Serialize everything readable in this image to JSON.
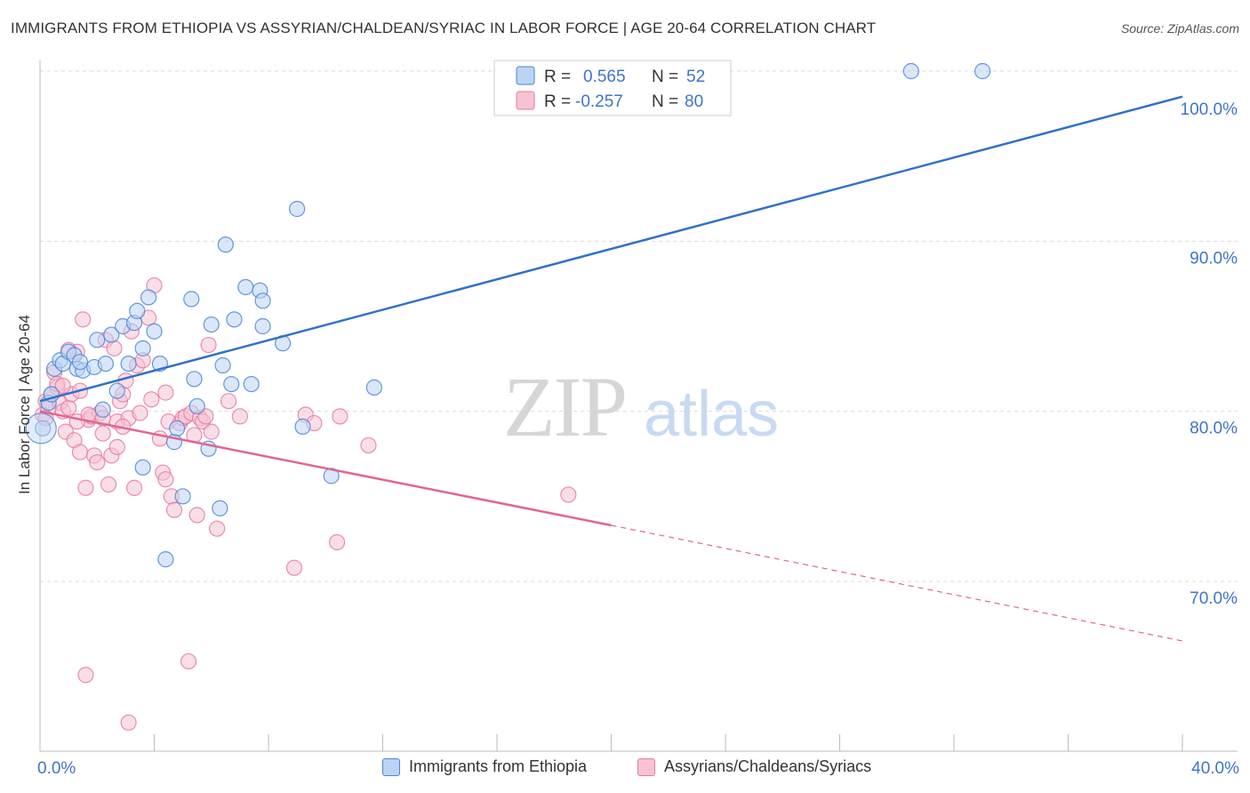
{
  "title": "IMMIGRANTS FROM ETHIOPIA VS ASSYRIAN/CHALDEAN/SYRIAC IN LABOR FORCE | AGE 20-64 CORRELATION CHART",
  "source": "Source: ZipAtlas.com",
  "watermark": {
    "zip": "ZIP",
    "atlas": "atlas"
  },
  "colors": {
    "blue": "#4a86d8",
    "blue_fill": "#bcd4f4",
    "blue_line": "#2f72c9",
    "pink": "#e67a9f",
    "pink_fill": "#f6c3d4",
    "pink_line": "#e06690",
    "grid": "#d9d9d9",
    "axis_text": "#3f74c8"
  },
  "legend": [
    {
      "r_label": "R =",
      "r_value": "0.565",
      "n_label": "N =",
      "n_value": "52"
    },
    {
      "r_label": "R =",
      "r_value": "-0.257",
      "n_label": "N =",
      "n_value": "80"
    }
  ],
  "chart_data": {
    "type": "scatter",
    "xlabel": "",
    "ylabel": "In Labor Force | Age 20-64",
    "xlim": [
      0,
      40
    ],
    "ylim": [
      62,
      101.5
    ],
    "x_tick_labels": [
      {
        "value": 0,
        "label": "0.0%"
      },
      {
        "value": 40,
        "label": "40.0%"
      }
    ],
    "y_tick_labels": [
      {
        "value": 70,
        "label": "70.0%"
      },
      {
        "value": 80,
        "label": "80.0%"
      },
      {
        "value": 90,
        "label": "90.0%"
      },
      {
        "value": 100,
        "label": "100.0%"
      }
    ],
    "grid": true,
    "legend_position": "top-center",
    "series": [
      {
        "name": "Immigrants from Ethiopia",
        "color": "#4a86d8",
        "trend": {
          "x": [
            0,
            40
          ],
          "y": [
            80.6,
            98.5
          ]
        },
        "points": [
          [
            0.1,
            79.0
          ],
          [
            0.3,
            80.5
          ],
          [
            0.4,
            81.0
          ],
          [
            0.5,
            82.5
          ],
          [
            0.7,
            83.0
          ],
          [
            0.8,
            82.8
          ],
          [
            1.0,
            83.5
          ],
          [
            1.2,
            83.3
          ],
          [
            1.3,
            82.5
          ],
          [
            1.5,
            82.4
          ],
          [
            1.9,
            82.6
          ],
          [
            2.0,
            84.2
          ],
          [
            2.3,
            82.8
          ],
          [
            2.5,
            84.5
          ],
          [
            2.7,
            81.2
          ],
          [
            2.9,
            85.0
          ],
          [
            3.1,
            82.8
          ],
          [
            3.3,
            85.2
          ],
          [
            3.4,
            85.9
          ],
          [
            3.6,
            83.7
          ],
          [
            3.8,
            86.7
          ],
          [
            4.0,
            84.7
          ],
          [
            4.2,
            82.8
          ],
          [
            3.6,
            76.7
          ],
          [
            4.4,
            71.3
          ],
          [
            4.7,
            78.2
          ],
          [
            4.8,
            79.0
          ],
          [
            5.0,
            75.0
          ],
          [
            5.3,
            86.6
          ],
          [
            5.4,
            81.9
          ],
          [
            5.5,
            80.3
          ],
          [
            5.9,
            77.8
          ],
          [
            6.0,
            85.1
          ],
          [
            6.3,
            74.3
          ],
          [
            6.4,
            82.7
          ],
          [
            6.5,
            89.8
          ],
          [
            6.7,
            81.6
          ],
          [
            6.8,
            85.4
          ],
          [
            7.2,
            87.3
          ],
          [
            7.4,
            81.6
          ],
          [
            7.7,
            87.1
          ],
          [
            7.8,
            86.5
          ],
          [
            7.8,
            85.0
          ],
          [
            8.5,
            84.0
          ],
          [
            9.0,
            91.9
          ],
          [
            9.2,
            79.1
          ],
          [
            10.2,
            76.2
          ],
          [
            11.7,
            81.4
          ],
          [
            30.5,
            100.0
          ],
          [
            33.0,
            100.0
          ],
          [
            1.4,
            82.9
          ],
          [
            2.2,
            80.1
          ]
        ]
      },
      {
        "name": "Assyrians/Chaldeans/Syriacs",
        "color": "#e67a9f",
        "trend": {
          "x": [
            0,
            20
          ],
          "y": [
            80.0,
            73.3
          ]
        },
        "trend_dashed": {
          "x": [
            20,
            40
          ],
          "y": [
            73.3,
            66.5
          ]
        },
        "points": [
          [
            0.1,
            79.8
          ],
          [
            0.2,
            80.6
          ],
          [
            0.3,
            80.2
          ],
          [
            0.4,
            81.0
          ],
          [
            0.5,
            82.3
          ],
          [
            0.6,
            81.4
          ],
          [
            0.7,
            80.5
          ],
          [
            0.8,
            80.0
          ],
          [
            0.9,
            78.8
          ],
          [
            1.0,
            80.2
          ],
          [
            1.1,
            81.0
          ],
          [
            1.2,
            78.3
          ],
          [
            1.3,
            83.5
          ],
          [
            1.4,
            77.6
          ],
          [
            1.5,
            85.4
          ],
          [
            1.6,
            75.5
          ],
          [
            1.7,
            79.5
          ],
          [
            1.8,
            79.7
          ],
          [
            1.9,
            77.4
          ],
          [
            2.0,
            77.0
          ],
          [
            2.1,
            79.9
          ],
          [
            2.2,
            78.7
          ],
          [
            2.3,
            84.2
          ],
          [
            2.4,
            75.7
          ],
          [
            2.5,
            77.4
          ],
          [
            2.6,
            83.7
          ],
          [
            2.7,
            79.4
          ],
          [
            2.8,
            80.6
          ],
          [
            2.9,
            81.0
          ],
          [
            3.0,
            81.8
          ],
          [
            3.1,
            79.6
          ],
          [
            3.2,
            84.7
          ],
          [
            3.3,
            75.5
          ],
          [
            3.4,
            82.7
          ],
          [
            3.5,
            79.9
          ],
          [
            3.6,
            83.0
          ],
          [
            3.8,
            85.5
          ],
          [
            3.9,
            80.7
          ],
          [
            4.0,
            87.4
          ],
          [
            4.2,
            78.4
          ],
          [
            4.3,
            76.4
          ],
          [
            4.4,
            76.0
          ],
          [
            4.5,
            79.4
          ],
          [
            4.6,
            75.0
          ],
          [
            4.7,
            74.2
          ],
          [
            4.9,
            79.3
          ],
          [
            5.0,
            79.6
          ],
          [
            5.1,
            79.7
          ],
          [
            5.3,
            79.9
          ],
          [
            5.4,
            78.6
          ],
          [
            5.5,
            73.9
          ],
          [
            5.6,
            79.6
          ],
          [
            5.7,
            79.4
          ],
          [
            5.8,
            79.7
          ],
          [
            5.9,
            83.9
          ],
          [
            6.0,
            78.8
          ],
          [
            6.2,
            73.1
          ],
          [
            6.6,
            80.6
          ],
          [
            7.0,
            79.7
          ],
          [
            8.9,
            70.8
          ],
          [
            9.3,
            79.8
          ],
          [
            9.6,
            79.3
          ],
          [
            10.4,
            72.3
          ],
          [
            10.5,
            79.7
          ],
          [
            11.5,
            78.0
          ],
          [
            18.5,
            75.1
          ],
          [
            1.6,
            64.5
          ],
          [
            5.2,
            65.3
          ],
          [
            3.1,
            61.7
          ],
          [
            0.6,
            81.6
          ],
          [
            1.0,
            83.6
          ],
          [
            1.3,
            79.4
          ],
          [
            2.2,
            79.6
          ],
          [
            2.7,
            77.9
          ],
          [
            0.2,
            79.6
          ],
          [
            1.7,
            79.8
          ],
          [
            2.9,
            79.1
          ],
          [
            4.4,
            81.1
          ],
          [
            0.8,
            81.5
          ],
          [
            1.4,
            81.2
          ]
        ]
      }
    ]
  }
}
